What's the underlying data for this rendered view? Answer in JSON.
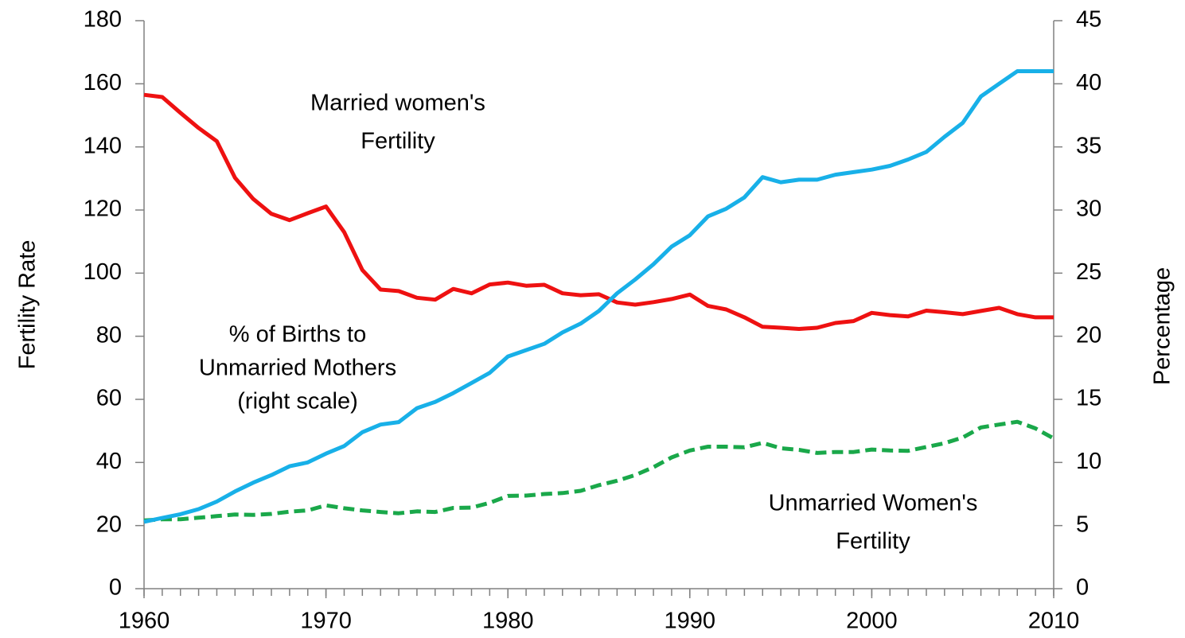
{
  "chart_data": {
    "type": "line",
    "x": [
      1960,
      1961,
      1962,
      1963,
      1964,
      1965,
      1966,
      1967,
      1968,
      1969,
      1970,
      1971,
      1972,
      1973,
      1974,
      1975,
      1976,
      1977,
      1978,
      1979,
      1980,
      1981,
      1982,
      1983,
      1984,
      1985,
      1986,
      1987,
      1988,
      1989,
      1990,
      1991,
      1992,
      1993,
      1994,
      1995,
      1996,
      1997,
      1998,
      1999,
      2000,
      2001,
      2002,
      2003,
      2004,
      2005,
      2006,
      2007,
      2008,
      2009,
      2010
    ],
    "xlim": [
      1960,
      2010
    ],
    "xticks": [
      1960,
      1970,
      1980,
      1990,
      2000,
      2010
    ],
    "ylabel": "Fertility Rate",
    "ylim": [
      0,
      180
    ],
    "yticks": [
      0,
      20,
      40,
      60,
      80,
      100,
      120,
      140,
      160,
      180
    ],
    "y2label": "Percentage",
    "y2lim": [
      0,
      45
    ],
    "y2ticks": [
      0,
      5,
      10,
      15,
      20,
      25,
      30,
      35,
      40,
      45
    ],
    "series": [
      {
        "name": "Married women's Fertility",
        "color": "#ee1111",
        "style": "solid",
        "values": [
          156.5,
          155.8,
          150.8,
          146,
          141.8,
          130.2,
          123.5,
          118.8,
          116.8,
          119,
          121.1,
          113,
          101,
          94.8,
          94.3,
          92.2,
          91.6,
          95,
          93.6,
          96.4,
          97,
          96,
          96.3,
          93.6,
          93,
          93.3,
          90.7,
          90,
          90.8,
          91.8,
          93.2,
          89.6,
          88.5,
          86,
          83,
          82.7,
          82.3,
          82.7,
          84.2,
          84.8,
          87.4,
          86.7,
          86.3,
          88.1,
          87.6,
          87,
          88,
          89,
          87,
          86,
          86
        ]
      },
      {
        "name": "Unmarried Women's Fertility",
        "color": "#1aa84a",
        "style": "dashed",
        "values": [
          21.6,
          22,
          22,
          22.5,
          23,
          23.5,
          23.4,
          23.7,
          24.4,
          24.8,
          26.4,
          25.5,
          24.8,
          24.3,
          23.9,
          24.5,
          24.3,
          25.6,
          25.7,
          27.2,
          29.4,
          29.5,
          30,
          30.3,
          31,
          32.8,
          34.2,
          36,
          38.5,
          41.6,
          43.8,
          45,
          45,
          44.8,
          46.2,
          44.5,
          44,
          43,
          43.3,
          43.3,
          44.1,
          43.8,
          43.7,
          44.9,
          46.1,
          47.9,
          51.1,
          52,
          52.9,
          50.8,
          47.6
        ]
      },
      {
        "name": "% of Births to Unmarried Mothers",
        "color": "#18b0e8",
        "style": "solid",
        "axis": "y2",
        "values": [
          5.3,
          5.6,
          5.9,
          6.3,
          6.9,
          7.7,
          8.4,
          9,
          9.7,
          10,
          10.7,
          11.3,
          12.4,
          13,
          13.2,
          14.3,
          14.8,
          15.5,
          16.3,
          17.1,
          18.4,
          18.9,
          19.4,
          20.3,
          21,
          22,
          23.4,
          24.5,
          25.7,
          27.1,
          28,
          29.5,
          30.1,
          31,
          32.6,
          32.2,
          32.4,
          32.4,
          32.8,
          33,
          33.2,
          33.5,
          34,
          34.6,
          35.8,
          36.9,
          39,
          40,
          41,
          41,
          41
        ]
      }
    ],
    "annotations": [
      {
        "lines": [
          "Married women's",
          "Fertility"
        ]
      },
      {
        "lines": [
          "% of Births to",
          "Unmarried Mothers",
          "(right scale)"
        ]
      },
      {
        "lines": [
          "Unmarried Women's",
          "Fertility"
        ]
      }
    ]
  }
}
